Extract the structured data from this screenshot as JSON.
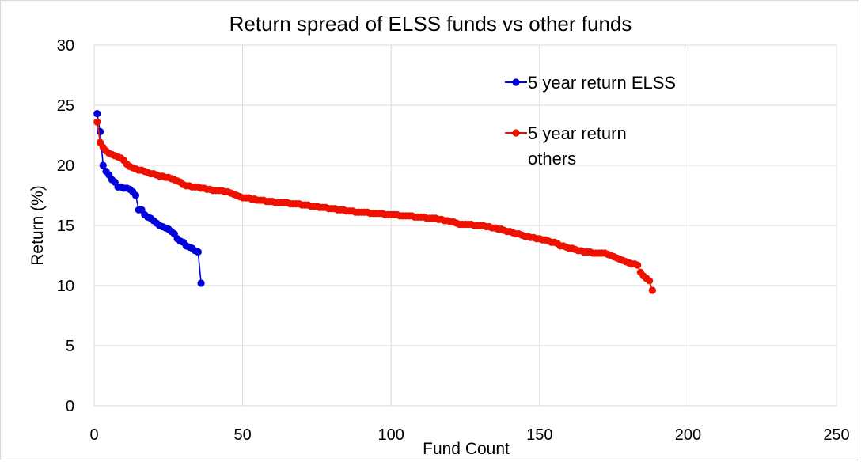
{
  "chart_data": {
    "type": "line",
    "title": "Return spread of ELSS funds vs other funds",
    "xlabel": "Fund Count",
    "ylabel": "Return (%)",
    "xlim": [
      0,
      250
    ],
    "ylim": [
      0,
      30
    ],
    "x_ticks": [
      "0",
      "50",
      "100",
      "150",
      "200",
      "250"
    ],
    "y_ticks": [
      "0",
      "5",
      "10",
      "15",
      "20",
      "25",
      "30"
    ],
    "grid": true,
    "legend_position": "top-right",
    "series": [
      {
        "name": "5 year return ELSS",
        "legend_lines": [
          "5 year return ELSS"
        ],
        "color": "#0000dd",
        "marker": "circle",
        "values": [
          24.3,
          22.8,
          20.0,
          19.5,
          19.2,
          18.8,
          18.6,
          18.2,
          18.2,
          18.1,
          18.1,
          18.0,
          17.8,
          17.5,
          16.3,
          16.3,
          15.9,
          15.7,
          15.6,
          15.4,
          15.2,
          15.0,
          14.9,
          14.8,
          14.7,
          14.5,
          14.3,
          13.9,
          13.7,
          13.6,
          13.3,
          13.2,
          13.1,
          12.9,
          12.8,
          10.2
        ]
      },
      {
        "name": "5 year return others",
        "legend_lines": [
          "5 year return",
          "others"
        ],
        "color": "#ee1100",
        "marker": "circle",
        "values": [
          23.6,
          21.9,
          21.5,
          21.2,
          21.0,
          20.9,
          20.8,
          20.7,
          20.6,
          20.4,
          20.1,
          19.9,
          19.8,
          19.7,
          19.6,
          19.6,
          19.5,
          19.4,
          19.3,
          19.3,
          19.2,
          19.1,
          19.1,
          19.0,
          19.0,
          18.9,
          18.8,
          18.7,
          18.6,
          18.4,
          18.3,
          18.3,
          18.2,
          18.2,
          18.2,
          18.1,
          18.1,
          18.0,
          18.0,
          17.9,
          17.9,
          17.9,
          17.9,
          17.8,
          17.8,
          17.7,
          17.6,
          17.5,
          17.4,
          17.3,
          17.3,
          17.3,
          17.2,
          17.2,
          17.1,
          17.1,
          17.1,
          17.0,
          17.0,
          17.0,
          16.9,
          16.9,
          16.9,
          16.9,
          16.9,
          16.8,
          16.8,
          16.8,
          16.8,
          16.7,
          16.7,
          16.7,
          16.6,
          16.6,
          16.6,
          16.5,
          16.5,
          16.5,
          16.4,
          16.4,
          16.4,
          16.3,
          16.3,
          16.3,
          16.2,
          16.2,
          16.2,
          16.1,
          16.1,
          16.1,
          16.1,
          16.1,
          16.0,
          16.0,
          16.0,
          16.0,
          16.0,
          15.9,
          15.9,
          15.9,
          15.9,
          15.9,
          15.8,
          15.8,
          15.8,
          15.8,
          15.8,
          15.7,
          15.7,
          15.7,
          15.7,
          15.6,
          15.6,
          15.6,
          15.6,
          15.5,
          15.5,
          15.4,
          15.4,
          15.3,
          15.3,
          15.2,
          15.1,
          15.1,
          15.1,
          15.1,
          15.1,
          15.0,
          15.0,
          15.0,
          15.0,
          14.9,
          14.9,
          14.8,
          14.8,
          14.7,
          14.7,
          14.6,
          14.5,
          14.5,
          14.4,
          14.3,
          14.3,
          14.2,
          14.1,
          14.1,
          14.0,
          14.0,
          13.9,
          13.9,
          13.8,
          13.8,
          13.7,
          13.6,
          13.6,
          13.5,
          13.3,
          13.3,
          13.2,
          13.1,
          13.1,
          13.0,
          12.9,
          12.9,
          12.8,
          12.8,
          12.8,
          12.7,
          12.7,
          12.7,
          12.7,
          12.7,
          12.6,
          12.5,
          12.4,
          12.3,
          12.2,
          12.1,
          12.0,
          11.9,
          11.8,
          11.8,
          11.7,
          11.1,
          10.8,
          10.6,
          10.4,
          9.6
        ]
      }
    ]
  }
}
